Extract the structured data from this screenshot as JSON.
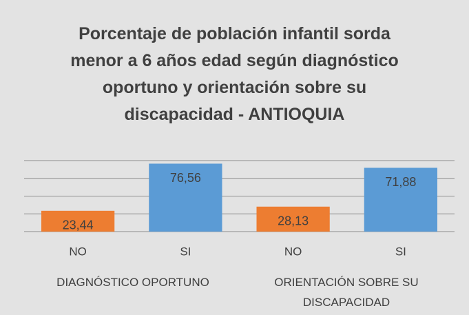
{
  "chart_data": {
    "type": "bar",
    "title": "Porcentaje de población infantil sorda menor a 6 años edad según diagnóstico oportuno y orientación sobre su discapacidad - ANTIOQUIA",
    "categories": [
      "NO",
      "SI",
      "NO",
      "SI"
    ],
    "groups": [
      "DIAGNÓSTICO OPORTUNO",
      "ORIENTACIÓN SOBRE SU DISCAPACIDAD"
    ],
    "values": [
      23.44,
      76.56,
      28.13,
      71.88
    ],
    "value_labels": [
      "23,44",
      "76,56",
      "28,13",
      "71,88"
    ],
    "colors": [
      "#ed7d31",
      "#5b9bd5",
      "#ed7d31",
      "#5b9bd5"
    ],
    "ylim": [
      0,
      80
    ],
    "yticks": [
      0,
      20,
      40,
      60,
      80
    ],
    "grid": true
  }
}
